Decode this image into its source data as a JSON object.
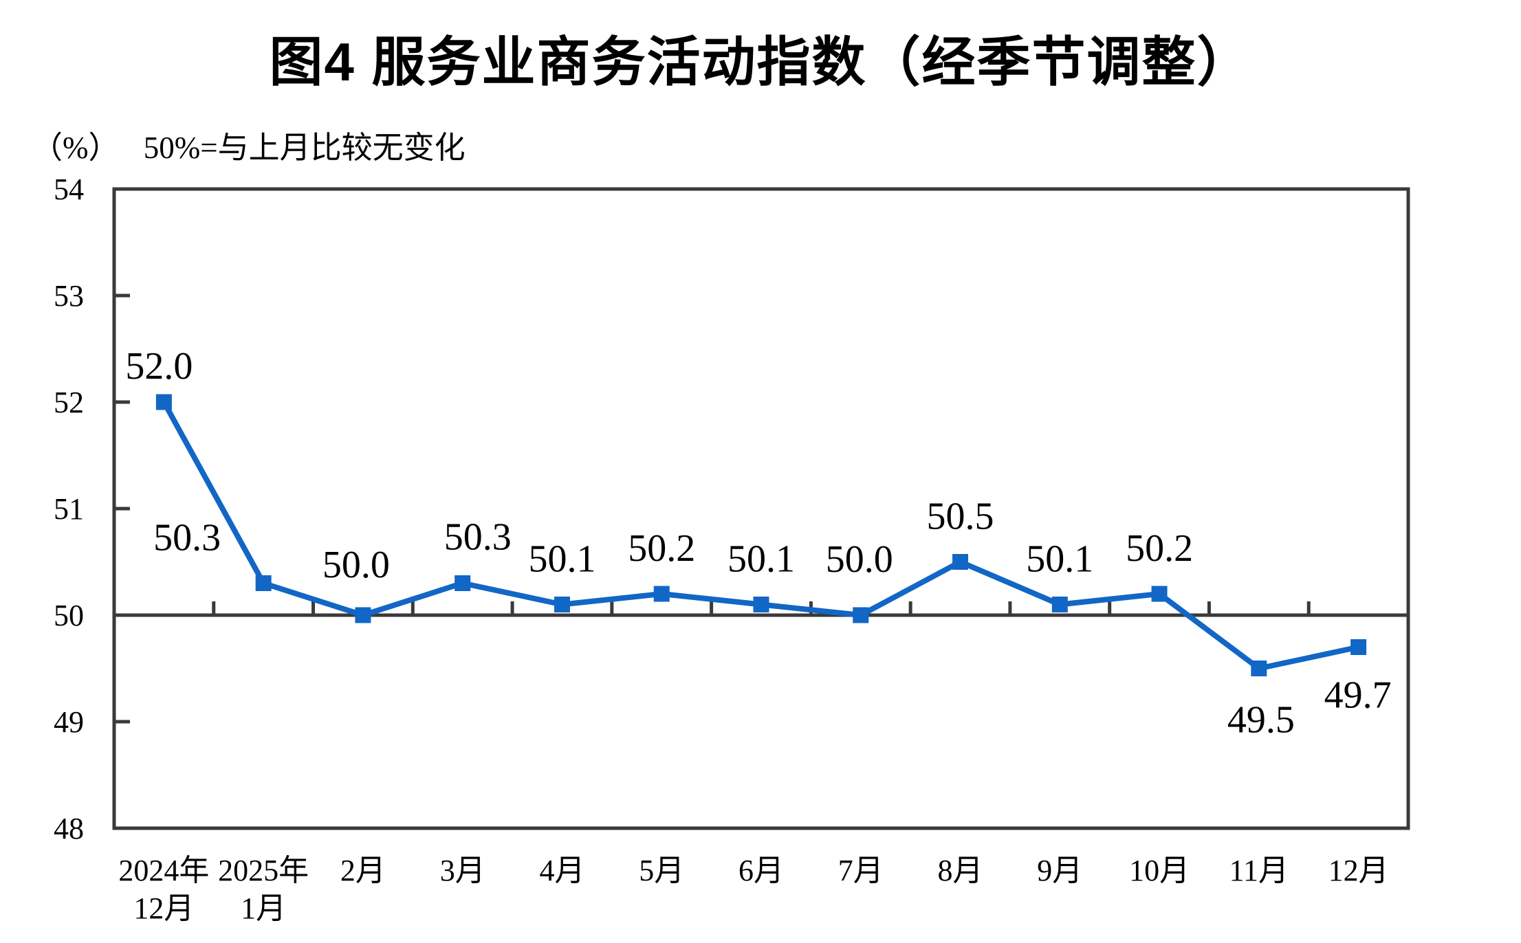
{
  "page": {
    "title": "图4 服务业商务活动指数（经季节调整）",
    "unit_note": "（%）",
    "reference_note": "50%=与上月比较无变化"
  },
  "chart_data": {
    "type": "line",
    "title": "图4 服务业商务活动指数（经季节调整）",
    "unit": "%",
    "note": "50%=与上月比较无变化",
    "categories": [
      "2024年12月",
      "2025年1月",
      "2月",
      "3月",
      "4月",
      "5月",
      "6月",
      "7月",
      "8月",
      "9月",
      "10月",
      "11月",
      "12月"
    ],
    "category_lines": [
      [
        "2024年",
        "12月"
      ],
      [
        "2025年",
        "1月"
      ],
      [
        "2月"
      ],
      [
        "3月"
      ],
      [
        "4月"
      ],
      [
        "5月"
      ],
      [
        "6月"
      ],
      [
        "7月"
      ],
      [
        "8月"
      ],
      [
        "9月"
      ],
      [
        "10月"
      ],
      [
        "11月"
      ],
      [
        "12月"
      ]
    ],
    "values": [
      52.0,
      50.3,
      50.0,
      50.3,
      50.1,
      50.2,
      50.1,
      50.0,
      50.5,
      50.1,
      50.2,
      49.5,
      49.7
    ],
    "point_labels": [
      "52.0",
      "50.3",
      "50.0",
      "50.3",
      "50.1",
      "50.2",
      "50.1",
      "50.0",
      "50.5",
      "50.1",
      "50.2",
      "49.5",
      "49.7"
    ],
    "ylim": [
      48,
      54
    ],
    "yticks": [
      48,
      49,
      50,
      51,
      52,
      53,
      54
    ],
    "reference_line_y": 50,
    "legend_position": "none",
    "grid": "off",
    "colors": {
      "line": "#1266C6",
      "marker": "#1266C6",
      "axis": "#3A3A3A",
      "text": "#000000"
    }
  }
}
